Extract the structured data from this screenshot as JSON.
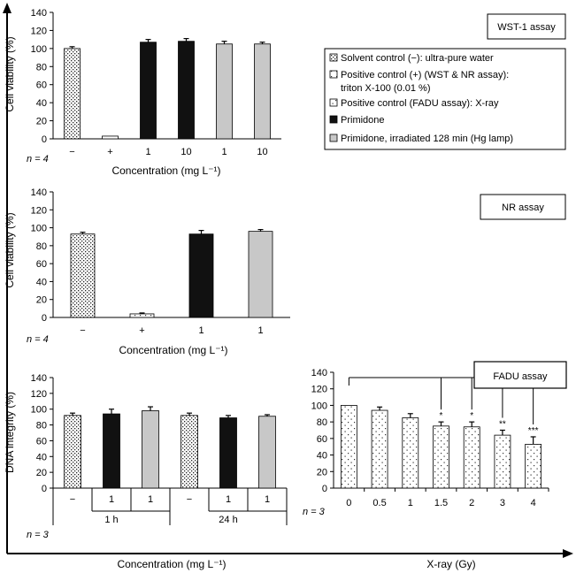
{
  "colors": {
    "primidone": "#111111",
    "irradiated": "#c8c8c8",
    "control_bg": "#ffffff",
    "axis": "#000000"
  },
  "x_axis_label": "Concentration (mg L⁻¹)",
  "x_axis_label_xray": "X-ray (Gy)",
  "legend": {
    "solvent": "Solvent control (−): ultra-pure water",
    "positive_line1": "Positive control (+) (WST & NR assay):",
    "positive_line2": "triton X-100 (0.01 %)",
    "fadu_pos": "Positive control (FADU assay): X-ray",
    "primidone": "Primidone",
    "irradiated": "Primidone, irradiated 128 min (Hg lamp)"
  },
  "chart_data": [
    {
      "type": "bar",
      "panel": "WST-1 assay",
      "box_label": "WST-1 assay",
      "ylabel": "Cell viability (%)",
      "ylim": [
        0,
        140
      ],
      "yticks": [
        0,
        20,
        40,
        60,
        80,
        100,
        120,
        140
      ],
      "n_label": "n = 4",
      "xlabel": "Concentration (mg L⁻¹)",
      "categories": [
        "−",
        "+",
        "1",
        "10",
        "1",
        "10"
      ],
      "groups": [
        "solvent",
        "positive",
        "primidone",
        "primidone",
        "irradiated",
        "irradiated"
      ],
      "values": [
        100,
        3,
        107,
        108,
        105,
        105
      ],
      "errors": [
        2,
        0,
        3,
        3,
        3,
        2
      ]
    },
    {
      "type": "bar",
      "panel": "NR assay",
      "box_label": "NR assay",
      "ylabel": "Cell viability (%)",
      "ylim": [
        0,
        140
      ],
      "yticks": [
        0,
        20,
        40,
        60,
        80,
        100,
        120,
        140
      ],
      "n_label": "n = 4",
      "xlabel": "Concentration (mg L⁻¹)",
      "categories": [
        "−",
        "+",
        "1",
        "1"
      ],
      "groups": [
        "solvent",
        "positive",
        "primidone",
        "irradiated"
      ],
      "values": [
        93,
        4,
        93,
        96
      ],
      "errors": [
        2,
        1,
        4,
        2
      ]
    },
    {
      "type": "bar",
      "panel": "DNA integrity",
      "ylabel": "DNA integrity (%)",
      "ylim": [
        0,
        140
      ],
      "yticks": [
        0,
        20,
        40,
        60,
        80,
        100,
        120,
        140
      ],
      "n_label": "n = 3",
      "categories": [
        "−",
        "1",
        "1",
        "−",
        "1",
        "1"
      ],
      "group_labels": [
        "1 h",
        "24 h"
      ],
      "groups": [
        "solvent",
        "primidone",
        "irradiated",
        "solvent",
        "primidone",
        "irradiated"
      ],
      "values": [
        92,
        94,
        98,
        92,
        89,
        91
      ],
      "errors": [
        3,
        6,
        5,
        3,
        3,
        2
      ]
    },
    {
      "type": "bar",
      "panel": "FADU assay",
      "box_label": "FADU assay",
      "xlabel": "X-ray (Gy)",
      "ylim": [
        0,
        140
      ],
      "yticks": [
        0,
        20,
        40,
        60,
        80,
        100,
        120,
        140
      ],
      "n_label": "n = 3",
      "categories": [
        "0",
        "0.5",
        "1",
        "1.5",
        "2",
        "3",
        "4"
      ],
      "values": [
        100,
        94,
        85,
        75,
        74,
        64,
        53
      ],
      "errors": [
        0,
        4,
        5,
        5,
        6,
        6,
        9
      ],
      "significance": [
        "",
        "",
        "",
        "*",
        "*",
        "**",
        "***"
      ]
    }
  ]
}
